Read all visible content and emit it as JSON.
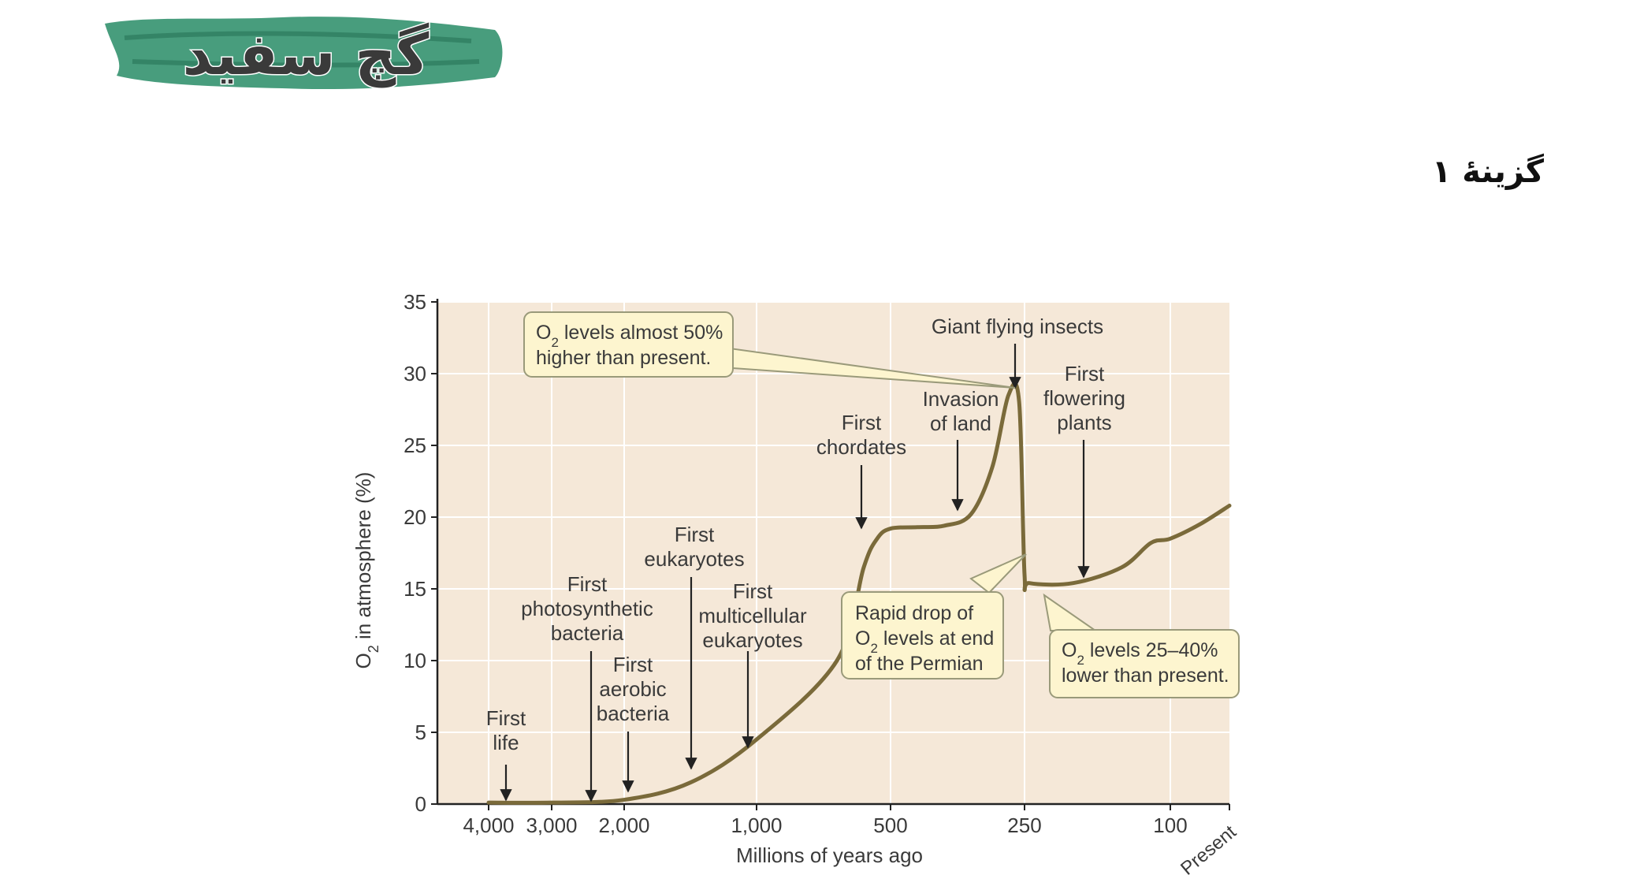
{
  "logo": {
    "text": "گچ سفید",
    "accent_color": "#2f8f6b"
  },
  "option_label": "گزینهٔ ۱",
  "chart_data": {
    "type": "line",
    "title": "",
    "xlabel": "Millions of years ago",
    "ylabel_main": "O",
    "ylabel_sub": "2",
    "ylabel_rest": " in atmosphere (%)",
    "ylim": [
      0,
      35
    ],
    "yticks": [
      0,
      5,
      10,
      15,
      20,
      25,
      30,
      35
    ],
    "xticks": [
      "4,000",
      "3,000",
      "2,000",
      "1,000",
      "500",
      "250",
      "100",
      "Present"
    ],
    "grid": true,
    "background_color": "#f5e8d8",
    "line_color": "#7a6a3a",
    "series": [
      {
        "values": [
          [
            "4,000",
            0.1
          ],
          [
            "3,000",
            0.1
          ],
          [
            "2,000",
            0.3
          ],
          [
            "1,500",
            1.5
          ],
          [
            "1,000",
            4.5
          ],
          [
            "700",
            10
          ],
          [
            "600",
            16.5
          ],
          [
            "550",
            18.5
          ],
          [
            "500",
            19.2
          ],
          [
            "450",
            19.3
          ],
          [
            "400",
            19.4
          ],
          [
            "350",
            20.2
          ],
          [
            "310",
            23.5
          ],
          [
            "280",
            28.5
          ],
          [
            "260",
            28
          ],
          [
            "250",
            16
          ],
          [
            "245",
            15.4
          ],
          [
            "200",
            15.4
          ],
          [
            "150",
            16.5
          ],
          [
            "120",
            18.2
          ],
          [
            "100",
            18.5
          ],
          [
            "50",
            19.5
          ],
          [
            "Present",
            20.8
          ]
        ]
      }
    ],
    "annotations": [
      {
        "lines": [
          "First",
          "life"
        ]
      },
      {
        "lines": [
          "First",
          "photosynthetic",
          "bacteria"
        ]
      },
      {
        "lines": [
          "First",
          "aerobic",
          "bacteria"
        ]
      },
      {
        "lines": [
          "First",
          "eukaryotes"
        ]
      },
      {
        "lines": [
          "First",
          "multicellular",
          "eukaryotes"
        ]
      },
      {
        "lines": [
          "First",
          "chordates"
        ]
      },
      {
        "lines": [
          "Invasion",
          "of land"
        ]
      },
      {
        "lines": [
          "Giant flying insects"
        ]
      },
      {
        "lines": [
          "First",
          "flowering",
          "plants"
        ]
      }
    ],
    "callouts": [
      {
        "line1_main": "O",
        "line1_sub": "2",
        "line1_rest": " levels almost 50%",
        "line2": "higher than present."
      },
      {
        "line1": "Rapid drop of",
        "line2_main": "O",
        "line2_sub": "2",
        "line2_rest": " levels at end",
        "line3": "of the Permian"
      },
      {
        "line1_main": "O",
        "line1_sub": "2",
        "line1_rest": " levels 25–40%",
        "line2": "lower than present."
      }
    ],
    "callout_fill": "#fdf5cf",
    "callout_stroke": "#9a9a7a"
  }
}
